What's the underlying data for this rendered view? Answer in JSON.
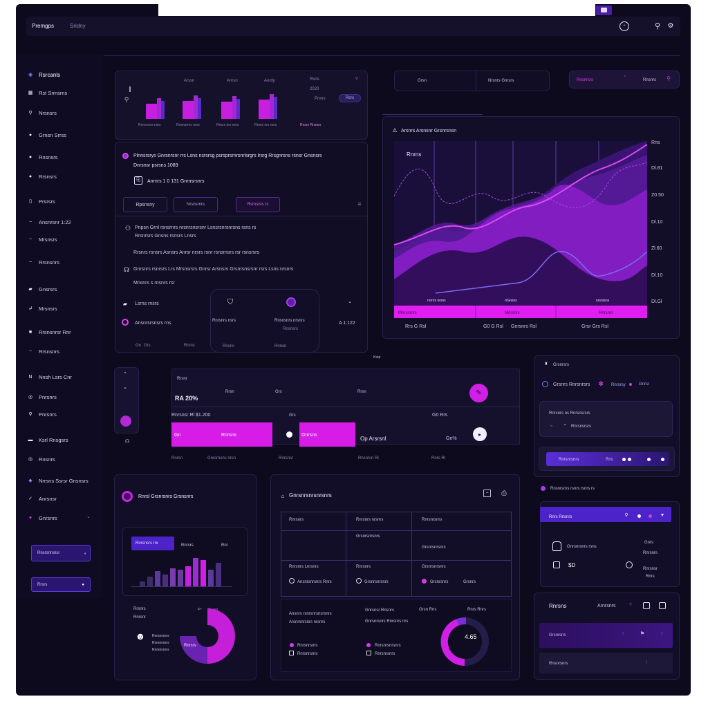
{
  "header": {
    "brand": "Premgps",
    "sub": "Sridny"
  },
  "sidebar": {
    "items": [
      {
        "label": "Rsrcanls",
        "icon": "radio-icon"
      },
      {
        "label": "Rst Srmsrns",
        "icon": "grid-icon"
      },
      {
        "label": "Nrsnsrs",
        "icon": "pin-icon"
      },
      {
        "label": "Grnsn Srrss",
        "icon": "dot-icon"
      },
      {
        "label": "Rnsnsrs",
        "icon": "dot-icon"
      },
      {
        "label": "Rrsnsrs",
        "icon": "dot-icon"
      },
      {
        "label": "Prsrsrs",
        "icon": "page-icon"
      },
      {
        "label": "Ansnrsnr 1:22",
        "icon": "line-icon"
      },
      {
        "label": "Mrsnsrs",
        "icon": "line-icon"
      },
      {
        "label": "Rrsnsnrs",
        "icon": "line-icon"
      },
      {
        "label": "Gnsrsrs",
        "icon": "chat-icon"
      },
      {
        "label": "Mrsnsrs",
        "icon": "arrow-icon"
      },
      {
        "label": "Rrsnsnrsr  Rnr",
        "icon": "square-icon"
      },
      {
        "label": "Rrsnsnrs",
        "icon": "line-icon"
      },
      {
        "label": "Nnsh  Lsrs  Cnr",
        "icon": "n-icon"
      },
      {
        "label": "Pnrsnrs",
        "icon": "circle-icon"
      },
      {
        "label": "Pnrsnrs",
        "icon": "pin-icon"
      },
      {
        "label": "Ksrl Rnsgsrs",
        "icon": "bar-icon"
      },
      {
        "label": "Rnsnrs",
        "icon": "circle-icon"
      },
      {
        "label": "Nrrsns Ssrsr Gnsnsrs",
        "icon": "drop-icon"
      },
      {
        "label": "Anrsnsr",
        "icon": "check-icon"
      },
      {
        "label": "Gnrsnrs",
        "icon": "heart-icon"
      }
    ],
    "btn1": "Rnsrsnrsnsr",
    "btn2": "Rrsrs"
  },
  "bars_panel": {
    "top_labels": [
      "Arssn",
      "Anrsn",
      "Anrdy",
      "Rsns",
      "2020",
      "Pnnrs"
    ],
    "toggle": "Rsrs",
    "bottom_labels": [
      "Rnrsrsnrs nsrs",
      "Rnsnsrnrs nsrs",
      "Rnsrs nrs nsrs",
      "Rnsrs nrs nsrs",
      "Rnsrs Rnsnrs"
    ],
    "values": [
      0.78,
      0.9,
      0.88,
      0.95
    ]
  },
  "message": {
    "line1": "Plnnsrsrys Gnrsnrsnr rrs Lsns nsrsrsg psrsprsrnrsnrlsrgrs  lrsrg  Rrsgnrsns rsnsr Gnsnsrs",
    "line2": "Dnrsnsr psrsns 1089",
    "link": "Anrnrs 1 0 131 Gnrnsrsnrs"
  },
  "filters": {
    "f1": "Rpsnsny",
    "f2": "Nrsnsrnrs",
    "f3": "Rsrnsnrs  rs"
  },
  "notes": {
    "n1a": "Pnpsn Grnl rsnsrnrs nrsnrsnsrsnr Lsnsrsnrsnrsns rsns rs",
    "n1b": "Rrsnrsrs Gnsns rsnsrs Lnsrs",
    "n2": "Rrsnrs rsnsrs Asnsrs Anrsr nrsrs  rsnr rsnsrnsrs rsr rsnsrsrs",
    "n3": "Gnrsnrs  rsnrsrs  Lrs Mrsnsrsrs Gnrsr Arsnsrs  Grsnrsnsrsnr rsrs Lsns nrsnrs",
    "n3b": "Mnsnrs s rnsnrs rsr",
    "row1": "Lsrns rnsrs",
    "row2": "Ansnrsrsnsrs rns",
    "mid1": "Rnrsnrs nsrs",
    "mid1b": "Rnsns",
    "mid2": "Rnsnsnrs nrsnrs",
    "mid2b": "Rnsnsrs",
    "val": "A 1:122",
    "foot1": "Gn",
    "foot2": "Grs",
    "foot3": "Rrsns",
    "foot4": "Rnnsn"
  },
  "stats": {
    "s1": "Grsn",
    "s2": "Nrsnrs Grnsrs"
  },
  "chips": {
    "c1": "Rnsnrsrs",
    "c2": "Rnsnrs"
  },
  "area_chart": {
    "title": "Arsnrs Arsnsnr Grsnrsnsn",
    "inner": "Rnrns",
    "yticks": [
      "Rns",
      "Dl.81",
      "Z0.50",
      "Dl.10",
      "Zl.60",
      "Dl.10",
      "Dl.Gl"
    ],
    "band_labels": [
      "Mnrsrsnrs",
      "Mnrsnrs",
      "Rnrsnrs"
    ],
    "xlabels": [
      "Rrs G Rsl",
      "G0 G Rsl",
      "Gnrsnrs  Rsl",
      "Grsr Grs  Rsl"
    ],
    "mid_labels": [
      "rnrnrs nrsns",
      "rrGnsns",
      "nrsnrsns"
    ],
    "footer": "Ksrp"
  },
  "kpi": {
    "title": "Rrsnr",
    "value": "RA 20%",
    "h1": "Rrsn",
    "h2": "Grs",
    "h3": "Rrsn",
    "mid": "Rnrsnsr  Rl  $1.200",
    "mid2": "Grs",
    "mid3": "G0 Rrs",
    "bar1": "Gn",
    "bar1b": "Rnrsns",
    "bar2": "Gnrsns",
    "pct": "Op Arsrsnl",
    "pct2": "Gn%",
    "f1": "Rnrsn",
    "f2": "Gnrsrnsns nrsn",
    "f3": "Rnrsnsr",
    "f4": "Rnsnrsn Rl",
    "f5": "Rnrs Rl"
  },
  "right_panel": {
    "title": "Grsnrsrs",
    "row": "Grsnrs Rnrsnrsrs",
    "tag1": "Rnrsrsy",
    "tag2": "Gnrsr",
    "sub": "Rnrsnrs ns  Rnrsnsrsrs",
    "sub2": "Rnrsnsrsrs",
    "pill": "Rnrsnrsnrs",
    "pill2": "Rns",
    "caption": "Rnsnrsrns rsnrs rsnrs rs"
  },
  "mini_panel": {
    "header": "Rnrs Rnsnrs",
    "val1": "Gnrsnrsnrs  rsns",
    "val2": "$D",
    "val3": "Rnrsnsr",
    "num": "Gnrs",
    "num2": "Rnrsnrs",
    "num3": "Rnrs"
  },
  "promo_panel": {
    "title": "Rnrsns",
    "right": "Arnrsnrs",
    "r1": "Grsnrsns",
    "r2": "Rnsnrsnrs"
  },
  "bottom_left": {
    "title": "Rnrsl  Grsnrsnrs  Grsnsnrs",
    "badge": "Rnrsnsrs rnr",
    "badge2": "Rnrsrs",
    "badge3": "Rnl",
    "lbl1": "Rrsnrs",
    "lbl2": "Rnrsnr",
    "val": "Rnrs  Gnrsl",
    "legend1": "Rnrsnrsnrs",
    "legend2": "Rnrsnrsnrs",
    "legend3": "Rnrsnrsnrs",
    "donut": "Rnrsrs",
    "bars": [
      0.15,
      0.3,
      0.45,
      0.35,
      0.55,
      0.5,
      0.6,
      0.85,
      0.8,
      0.5,
      0.7
    ]
  },
  "table_panel": {
    "title": "Gnrsnrsnrsnrsnrs",
    "h1": "Rnrsnrs",
    "h2": "Rnrsnrs nrsnrs",
    "h3": "Rnrsnrsnrs",
    "c1": "Grsnrsnrsnrs",
    "c2": "Grsnrsnrsnrs",
    "r1": "Rnrsnrs Lnrsnrs",
    "r1b": "Ansnrsnrsnrs Rnrs",
    "r2": "Rnrsnrs",
    "r2b": "Grsnrsnrsnrs",
    "r3": "Grsnrsnrsnrs",
    "r3b": "Grsnrsnrs",
    "r3c": "Grsnrs",
    "s1": "Ansnrs rsnrsnrsnsrsnrs",
    "s2": "Arsnrsnrsnrs nrsnrs",
    "s3": "Gnrsnsr  Rnsnrs",
    "s4": "Gnrsnrsnrs Rnrsnrs nrs",
    "s5": "Grsn  Rns",
    "s6": "Rnrs Rnrs",
    "gauge": "4.65",
    "l1": "Rnrsnrsnrs",
    "l2": "Rnrsnrsnrs",
    "l3": "Rnrsnrsnrsnrs",
    "l4": "Rnrsnrsnrs"
  }
}
